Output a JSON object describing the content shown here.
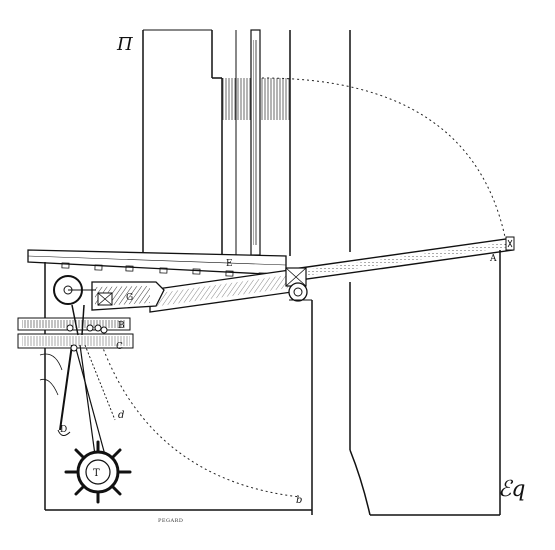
{
  "figure": {
    "labels": {
      "top_left": "Π",
      "A": "A",
      "B": "B",
      "C": "C",
      "D": "D",
      "E": "E",
      "G": "G",
      "T": "T",
      "b": "b",
      "d": "d"
    },
    "engraver_signature": "PEGARD",
    "monogram": "ℰq"
  }
}
